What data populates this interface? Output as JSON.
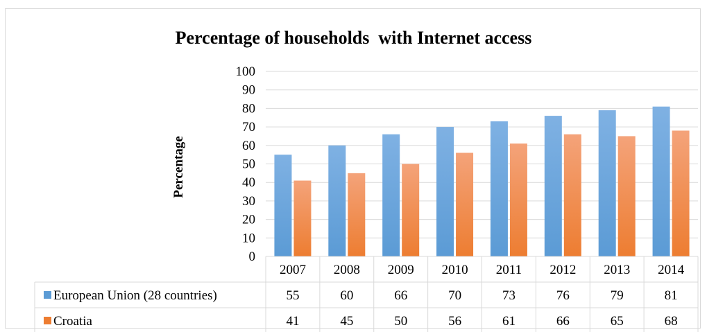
{
  "chart_data": {
    "type": "bar",
    "title": "Percentage of households  with Internet access",
    "xlabel": "",
    "ylabel": "Percentage",
    "categories": [
      "2007",
      "2008",
      "2009",
      "2010",
      "2011",
      "2012",
      "2013",
      "2014"
    ],
    "series": [
      {
        "name": "European Union (28 countries)",
        "values": [
          55,
          60,
          66,
          70,
          73,
          76,
          79,
          81
        ],
        "color": "#5b9bd5"
      },
      {
        "name": "Croatia",
        "values": [
          41,
          45,
          50,
          56,
          61,
          66,
          65,
          68
        ],
        "color": "#ed7d31"
      }
    ],
    "ylim": [
      0,
      100
    ],
    "yticks": [
      "0",
      "10",
      "20",
      "30",
      "40",
      "50",
      "60",
      "70",
      "80",
      "90",
      "100"
    ],
    "grid": true,
    "legend": "data table below chart"
  }
}
